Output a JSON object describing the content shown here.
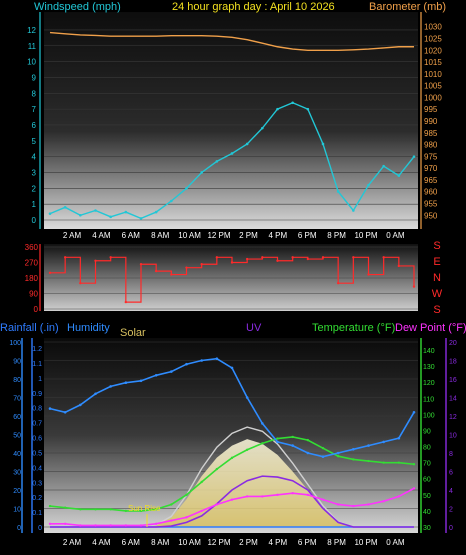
{
  "colors": {
    "wind": "#22c7d6",
    "baro": "#f0a04a",
    "dir": "#ff2a2a",
    "rain": "#2f7cff",
    "humidity": "#2f8cff",
    "solar": "#f2e6a0",
    "uv": "#8a2be2",
    "temp": "#33dd33",
    "dew": "#ff33ff",
    "axis": "#aaaaaa"
  },
  "top": {
    "left_label": "Windspeed (mph)",
    "center_label": "24 hour graph day : April 10 2026",
    "right_label": "Barometer (mb)",
    "left_ticks": [
      "0",
      "1",
      "2",
      "3",
      "4",
      "5",
      "6",
      "7",
      "8",
      "9",
      "10",
      "11",
      "12"
    ],
    "right_ticks": [
      "950",
      "955",
      "960",
      "965",
      "970",
      "975",
      "980",
      "985",
      "990",
      "995",
      "1000",
      "1005",
      "1010",
      "1015",
      "1020",
      "1025",
      "1030"
    ]
  },
  "mid": {
    "left_ticks": [
      "0",
      "90",
      "180",
      "270",
      "360"
    ],
    "compass": [
      "S",
      "E",
      "N",
      "W",
      "S"
    ]
  },
  "bottom": {
    "rain_label": "Rainfall (.in)",
    "hum_label": "Humidity",
    "solar_label": "Solar",
    "uv_label": "UV",
    "temp_label": "Temperature (°F)",
    "dew_label": "Dew Point (°F)",
    "hum_ticks": [
      "0",
      "10",
      "20",
      "30",
      "40",
      "50",
      "60",
      "70",
      "80",
      "90",
      "100"
    ],
    "rain_ticks": [
      "0",
      "0.1",
      "0.2",
      "0.3",
      "0.4",
      "0.5",
      "0.6",
      "0.7",
      "0.8",
      "0.9",
      "1",
      "1.1",
      "1.2"
    ],
    "temp_ticks": [
      "30",
      "40",
      "50",
      "60",
      "70",
      "80",
      "90",
      "100",
      "110",
      "120",
      "130",
      "140"
    ],
    "uv_ticks": [
      "0",
      "2",
      "4",
      "6",
      "8",
      "10",
      "12",
      "14",
      "16",
      "18",
      "20"
    ],
    "sunrise_label": "Sun Rise"
  },
  "time_ticks": [
    "2 AM",
    "4 AM",
    "6 AM",
    "8 AM",
    "10 AM",
    "12 PM",
    "2 PM",
    "4 PM",
    "6 PM",
    "8 PM",
    "10 PM",
    "0 AM"
  ],
  "chart_data": [
    {
      "type": "line",
      "title": "24 hour graph day : April 10 2026",
      "xlabel": "",
      "ylabel": "Windspeed (mph)",
      "y2label": "Barometer (mb)",
      "ylim": [
        0,
        12.5
      ],
      "y2lim": [
        948,
        1032
      ],
      "x": [
        "0 AM",
        "1 AM",
        "2 AM",
        "3 AM",
        "4 AM",
        "5 AM",
        "6 AM",
        "7 AM",
        "8 AM",
        "9 AM",
        "10 AM",
        "11 AM",
        "12 PM",
        "1 PM",
        "2 PM",
        "3 PM",
        "4 PM",
        "5 PM",
        "6 PM",
        "7 PM",
        "8 PM",
        "9 PM",
        "10 PM",
        "11 PM",
        "0 AM"
      ],
      "series": [
        {
          "name": "Windspeed (mph)",
          "axis": "left",
          "values": [
            0.4,
            0.8,
            0.3,
            0.6,
            0.2,
            0.5,
            0.1,
            0.5,
            1.2,
            2.0,
            3.0,
            3.7,
            4.2,
            4.8,
            5.8,
            7.0,
            7.4,
            7.0,
            4.8,
            1.8,
            0.6,
            2.2,
            3.4,
            2.8,
            4.0
          ]
        },
        {
          "name": "Barometer (mb)",
          "axis": "right",
          "values": [
            1027.5,
            1027,
            1026.5,
            1026.3,
            1026,
            1026,
            1026,
            1026,
            1026.2,
            1026.2,
            1026.2,
            1026,
            1025.5,
            1024.5,
            1023,
            1021.5,
            1020.5,
            1020,
            1020,
            1020,
            1020.2,
            1020.5,
            1021,
            1021.5,
            1021.5
          ]
        }
      ]
    },
    {
      "type": "scatter",
      "ylabel": "",
      "ylim": [
        0,
        360
      ],
      "x": [
        "0 AM",
        "1 AM",
        "2 AM",
        "3 AM",
        "4 AM",
        "5 AM",
        "6 AM",
        "7 AM",
        "8 AM",
        "9 AM",
        "10 AM",
        "11 AM",
        "12 PM",
        "1 PM",
        "2 PM",
        "3 PM",
        "4 PM",
        "5 PM",
        "6 PM",
        "7 PM",
        "8 PM",
        "9 PM",
        "10 PM",
        "11 PM",
        "0 AM"
      ],
      "series": [
        {
          "name": "Direction",
          "values": [
            210,
            300,
            150,
            280,
            300,
            40,
            260,
            220,
            200,
            240,
            260,
            300,
            270,
            290,
            300,
            280,
            300,
            290,
            300,
            150,
            300,
            200,
            300,
            250,
            130
          ]
        }
      ]
    },
    {
      "type": "line",
      "ylabel": "Humidity",
      "ylim": [
        0,
        100
      ],
      "x": [
        "0 AM",
        "1 AM",
        "2 AM",
        "3 AM",
        "4 AM",
        "5 AM",
        "6 AM",
        "7 AM",
        "8 AM",
        "9 AM",
        "10 AM",
        "11 AM",
        "12 PM",
        "1 PM",
        "2 PM",
        "3 PM",
        "4 PM",
        "5 PM",
        "6 PM",
        "7 PM",
        "8 PM",
        "9 PM",
        "10 PM",
        "11 PM",
        "0 AM"
      ],
      "series": [
        {
          "name": "Humidity",
          "unit": "%",
          "values": [
            64,
            62,
            66,
            72,
            76,
            78,
            79,
            82,
            84,
            88,
            90,
            91,
            86,
            70,
            56,
            46,
            44,
            40,
            38,
            40,
            42,
            44,
            46,
            48,
            62
          ]
        },
        {
          "name": "Temperature (°F)",
          "unit": "°F",
          "values": [
            43,
            42,
            41,
            41,
            41,
            40,
            40,
            41,
            44,
            50,
            58,
            66,
            73,
            78,
            82,
            85,
            86,
            84,
            79,
            74,
            72,
            71,
            70,
            70,
            69
          ]
        },
        {
          "name": "Dew Point (°F)",
          "unit": "°F",
          "values": [
            32,
            32,
            31,
            31,
            31,
            31,
            31,
            32,
            34,
            36,
            40,
            44,
            47,
            49,
            49,
            50,
            51,
            50,
            47,
            44,
            43,
            44,
            46,
            49,
            54
          ]
        },
        {
          "name": "Solar",
          "unit": "W/m²",
          "values": [
            0,
            0,
            0,
            0,
            0,
            0,
            0,
            0.02,
            0.1,
            0.3,
            0.55,
            0.75,
            0.88,
            0.95,
            0.9,
            0.78,
            0.6,
            0.4,
            0.2,
            0.05,
            0,
            0,
            0,
            0,
            0
          ]
        },
        {
          "name": "UV",
          "unit": "index",
          "values": [
            0,
            0,
            0,
            0,
            0,
            0,
            0,
            0,
            0.1,
            0.5,
            1.2,
            2.5,
            4.0,
            5.0,
            5.5,
            5.4,
            5.0,
            4.0,
            2.0,
            0.5,
            0,
            0,
            0,
            0,
            0
          ]
        },
        {
          "name": "Rainfall (.in)",
          "unit": "in",
          "values": [
            0,
            0,
            0,
            0,
            0,
            0,
            0,
            0,
            0,
            0,
            0,
            0,
            0,
            0,
            0,
            0,
            0,
            0,
            0,
            0,
            0,
            0,
            0,
            0,
            0
          ]
        }
      ]
    }
  ]
}
